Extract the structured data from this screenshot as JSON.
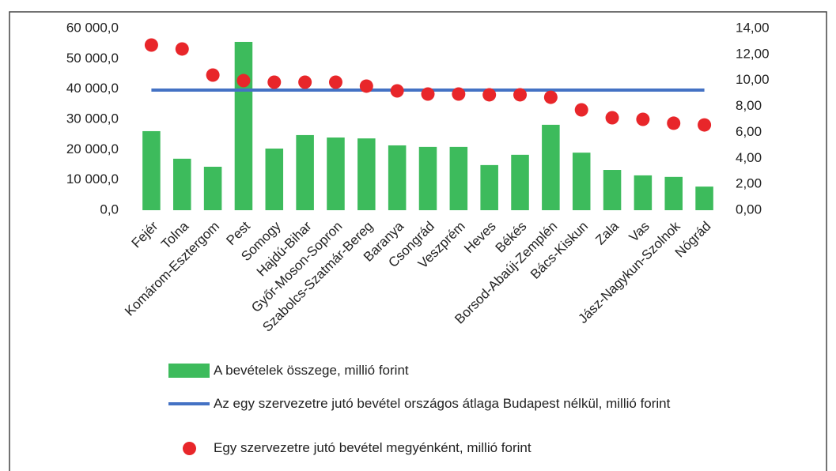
{
  "chart_data": {
    "type": "bar",
    "categories": [
      "Fejér",
      "Tolna",
      "Komárom-Esztergom",
      "Pest",
      "Somogy",
      "Hajdú-Bihar",
      "Győr-Moson-Sopron",
      "Szabolcs-Szatmár-Bereg",
      "Baranya",
      "Csongrád",
      "Veszprém",
      "Heves",
      "Békés",
      "Borsod-Abaúj-Zemplén",
      "Bács-Kiskun",
      "Zala",
      "Vas",
      "Jász-Nagykun-Szolnok",
      "Nógrád"
    ],
    "series": [
      {
        "name": "A bevételek összege, millió forint",
        "type": "bar",
        "color": "#3dbb5c",
        "values": [
          26100,
          17000,
          14350,
          55570,
          20350,
          24800,
          24000,
          23700,
          21400,
          20900,
          20900,
          14900,
          18300,
          28200,
          19000,
          13300,
          11500,
          11000,
          7800
        ]
      },
      {
        "name": "Az egy szervezetre jutó bevétel országos átlaga Budapest nélkül, millió forint",
        "type": "line",
        "color": "#4472c4",
        "axis": "y2",
        "values": [
          9.25,
          9.25,
          9.25,
          9.25,
          9.25,
          9.25,
          9.25,
          9.25,
          9.25,
          9.25,
          9.25,
          9.25,
          9.25,
          9.25,
          9.25,
          9.25,
          9.25,
          9.25,
          9.25
        ]
      },
      {
        "name": "Egy szervezetre jutó bevétel megyénként, millió forint",
        "type": "scatter",
        "color": "#e8262a",
        "axis": "y2",
        "values": [
          12.72,
          12.42,
          10.41,
          9.98,
          9.86,
          9.86,
          9.86,
          9.56,
          9.19,
          8.95,
          8.95,
          8.89,
          8.89,
          8.7,
          7.73,
          7.12,
          7.0,
          6.7,
          6.57
        ]
      }
    ],
    "ylim": [
      0,
      60000
    ],
    "yticks": [
      {
        "value": 0,
        "label": "0,0"
      },
      {
        "value": 10000,
        "label": "10 000,0"
      },
      {
        "value": 20000,
        "label": "20 000,0"
      },
      {
        "value": 30000,
        "label": "30 000,0"
      },
      {
        "value": 40000,
        "label": "40 000,0"
      },
      {
        "value": 50000,
        "label": "50 000,0"
      },
      {
        "value": 60000,
        "label": "60 000,0"
      }
    ],
    "y2lim": [
      0,
      14
    ],
    "y2ticks": [
      {
        "value": 0,
        "label": "0,00"
      },
      {
        "value": 2,
        "label": "2,00"
      },
      {
        "value": 4,
        "label": "4,00"
      },
      {
        "value": 6,
        "label": "6,00"
      },
      {
        "value": 8,
        "label": "8,00"
      },
      {
        "value": 10,
        "label": "10,00"
      },
      {
        "value": 12,
        "label": "12,00"
      },
      {
        "value": 14,
        "label": "14,00"
      }
    ]
  }
}
